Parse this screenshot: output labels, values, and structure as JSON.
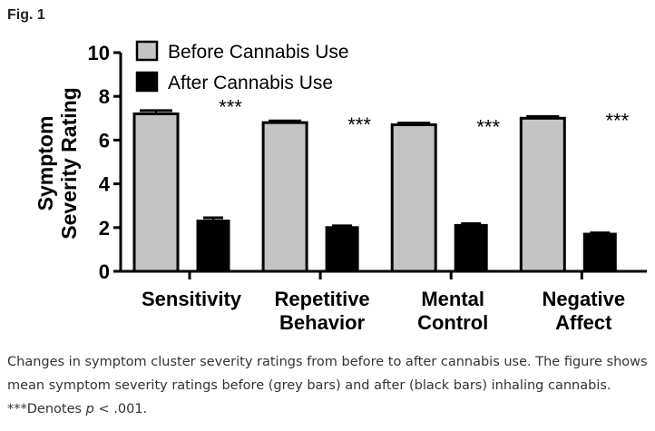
{
  "figure_label": "Fig. 1",
  "caption": {
    "text": "Changes in symptom cluster severity ratings from before to after cannabis use. The figure shows mean symptom severity ratings before (grey bars) and after (black bars) inhaling cannabis.",
    "note_prefix": "***Denotes ",
    "note_p": "p",
    "note_suffix": " < .001."
  },
  "chart_data": {
    "type": "bar",
    "categories": [
      "Sensitivity",
      "Repetitive Behavior",
      "Mental Control",
      "Negative Affect"
    ],
    "series": [
      {
        "name": "Before Cannabis Use",
        "values": [
          7.2,
          6.8,
          6.7,
          7.0
        ],
        "errors": [
          0.15,
          0.08,
          0.08,
          0.08
        ],
        "color": "#c4c4c4"
      },
      {
        "name": "After Cannabis Use",
        "values": [
          2.3,
          2.0,
          2.1,
          1.7
        ],
        "errors": [
          0.15,
          0.08,
          0.08,
          0.06
        ],
        "color": "#000000"
      }
    ],
    "annotations": [
      "***",
      "***",
      "***",
      "***"
    ],
    "ylabel": "Symptom Severity Rating",
    "ylim": [
      0,
      10
    ],
    "yticks": [
      0,
      2,
      4,
      6,
      8,
      10
    ],
    "legend": "top-left",
    "grid": false
  }
}
